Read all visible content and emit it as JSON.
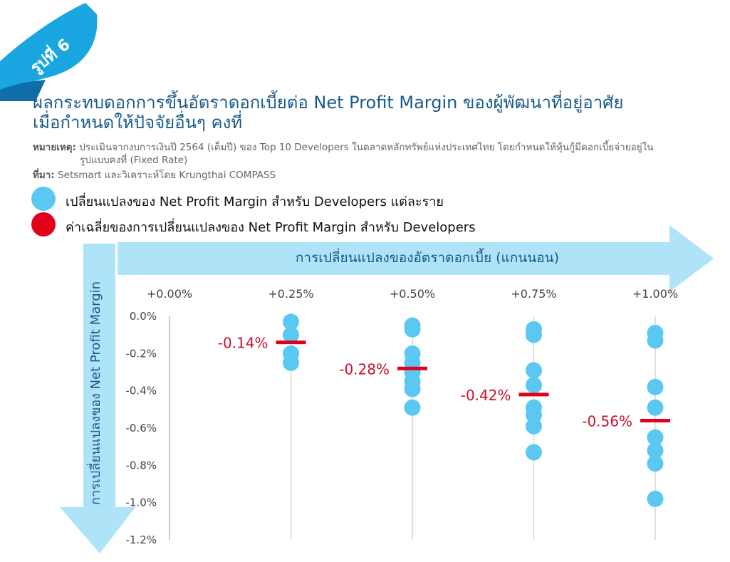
{
  "badge": {
    "text": "รูปที่ 6"
  },
  "title": {
    "line1": "ผลกระทบดอกการขึ้นอัตราดอกเบี้ยต่อ Net Profit Margin ของผู้พัฒนาที่อยู่อาศัย",
    "line2": "เมื่อกำหนดให้ปัจจัยอื่นๆ คงที่"
  },
  "note": {
    "label": "หมายเหตุ:",
    "line1": "ประเมินจากงบการเงินปี 2564 (เต็มปี) ของ Top 10 Developers ในตลาดหลักทรัพย์แห่งประเทศไทย โดยกำหนดให้หุ้นกู้มีดอกเบี้ยจ่ายอยู่ใน",
    "line2": "รูปแบบคงที่ (Fixed Rate)"
  },
  "source": {
    "label": "ที่มา:",
    "text": "Setsmart และวิเคราะห์โดย Krungthai COMPASS"
  },
  "legend": {
    "individual": "เปลี่ยนแปลงของ Net Profit Margin สำหรับ Developers แต่ละราย",
    "average": "ค่าเฉลี่ยของการเปลี่ยนแปลงของ Net Profit Margin สำหรับ Developers"
  },
  "colors": {
    "point": "#5bc8f2",
    "average": "#e2001a",
    "arrow": "#aee3f8",
    "title": "#1a5a8a",
    "avg_label": "#c8102e"
  },
  "chart_data": {
    "type": "scatter",
    "xlabel": "การเปลี่ยนแปลงของอัตราดอกเบี้ย (แกนนอน)",
    "ylabel": "การเปลี่ยนแปลงของ Net Profit Margin",
    "categories": [
      "+0.00%",
      "+0.25%",
      "+0.50%",
      "+0.75%",
      "+1.00%"
    ],
    "y_ticks": [
      "0.0%",
      "-0.2%",
      "-0.4%",
      "-0.6%",
      "-0.8%",
      "-1.0%",
      "-1.2%"
    ],
    "ylim": [
      -1.2,
      0.0
    ],
    "y_unit": "%",
    "series": [
      {
        "values": [
          [],
          [
            -0.03,
            -0.1,
            -0.2,
            -0.25
          ],
          [
            -0.05,
            -0.07,
            -0.2,
            -0.25,
            -0.3,
            -0.35,
            -0.39,
            -0.49
          ],
          [
            -0.07,
            -0.1,
            -0.29,
            -0.37,
            -0.49,
            -0.53,
            -0.59,
            -0.73
          ],
          [
            -0.09,
            -0.13,
            -0.38,
            -0.49,
            -0.65,
            -0.72,
            -0.79,
            -0.98
          ]
        ]
      }
    ],
    "averages": [
      null,
      -0.14,
      -0.28,
      -0.42,
      -0.56
    ],
    "average_labels": [
      "",
      "-0.14%",
      "-0.28%",
      "-0.42%",
      "-0.56%"
    ]
  }
}
